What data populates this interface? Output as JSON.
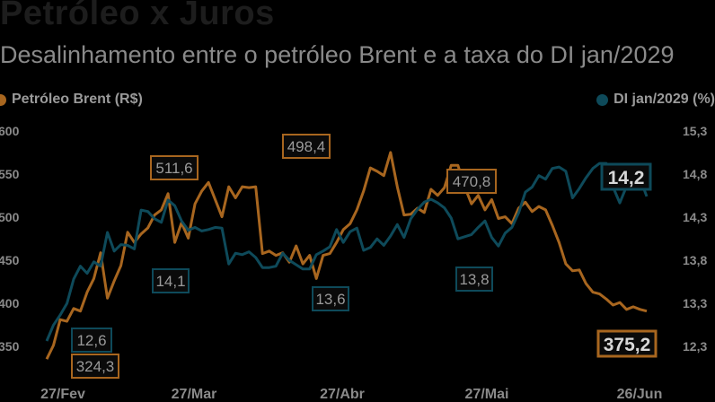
{
  "title": "Petróleo x Juros",
  "subtitle": "Desalinhamento entre o petróleo Brent e a taxa do DI jan/2029",
  "legend": {
    "left": {
      "label": "Petróleo Brent (R$)",
      "color": "#a8661f"
    },
    "right": {
      "label": "DI jan/2029 (%)",
      "color": "#0e4a5a"
    }
  },
  "chart_data": {
    "type": "line",
    "x_labels": [
      "27/Fev",
      "27/Mar",
      "27/Abr",
      "27/Mai",
      "26/Jun"
    ],
    "y_left": {
      "ticks": [
        "600",
        "550",
        "500",
        "450",
        "400",
        "350"
      ],
      "range": [
        330,
        600
      ]
    },
    "y_right": {
      "ticks": [
        "15,3",
        "14,8",
        "14,3",
        "13,8",
        "13,3",
        "12,3"
      ],
      "range": [
        12.08,
        15.3
      ]
    },
    "series": [
      {
        "name": "Petróleo Brent (R$)",
        "axis": "left",
        "color": "#a8661f",
        "values": [
          334,
          350,
          380,
          378,
          393,
          390,
          412,
          428,
          458,
          405,
          425,
          443,
          482,
          470,
          480,
          487,
          502,
          508,
          527,
          470,
          493,
          475,
          515,
          530,
          540,
          520,
          500,
          535,
          522,
          535,
          534,
          535,
          457,
          460,
          455,
          458,
          447,
          466,
          445,
          455,
          428,
          455,
          457,
          470,
          485,
          492,
          508,
          530,
          557,
          553,
          548,
          575,
          535,
          502,
          503,
          510,
          505,
          532,
          525,
          534,
          560,
          560,
          535,
          515,
          525,
          508,
          520,
          498,
          500,
          492,
          510,
          517,
          506,
          512,
          508,
          490,
          470,
          445,
          437,
          438,
          422,
          412,
          410,
          404,
          397,
          400,
          392,
          395,
          392,
          390
        ]
      },
      {
        "name": "DI jan/2029 (%)",
        "axis": "right",
        "color": "#0e4a5a",
        "values": [
          12.38,
          12.6,
          12.74,
          12.9,
          13.24,
          13.42,
          13.32,
          13.48,
          13.42,
          13.89,
          13.63,
          13.72,
          13.71,
          13.66,
          14.2,
          14.18,
          14.08,
          14.03,
          14.34,
          14.26,
          14.05,
          13.92,
          13.96,
          13.91,
          13.93,
          13.96,
          13.95,
          13.45,
          13.6,
          13.58,
          13.62,
          13.54,
          13.4,
          13.4,
          13.42,
          13.6,
          13.5,
          13.44,
          13.38,
          13.38,
          13.58,
          13.63,
          13.69,
          13.93,
          13.75,
          13.9,
          13.95,
          13.64,
          13.68,
          13.8,
          13.71,
          13.84,
          14.0,
          13.82,
          14.08,
          14.21,
          14.31,
          14.35,
          14.3,
          14.23,
          14.09,
          13.8,
          13.83,
          13.86,
          13.96,
          14.05,
          13.82,
          13.7,
          13.88,
          13.96,
          14.16,
          14.45,
          14.52,
          14.68,
          14.63,
          14.78,
          14.8,
          14.74,
          14.37,
          14.5,
          14.65,
          14.78,
          14.85,
          14.85,
          14.52,
          14.3,
          14.53,
          14.67,
          14.64,
          14.39
        ]
      }
    ],
    "annotations": [
      {
        "text": "511,6",
        "series": "Petróleo Brent (R$)",
        "big": false
      },
      {
        "text": "498,4",
        "series": "Petróleo Brent (R$)",
        "big": false
      },
      {
        "text": "470,8",
        "series": "Petróleo Brent (R$)",
        "big": false
      },
      {
        "text": "324,3",
        "series": "Petróleo Brent (R$)",
        "big": false
      },
      {
        "text": "375,2",
        "series": "Petróleo Brent (R$)",
        "big": true
      },
      {
        "text": "12,6",
        "series": "DI jan/2029 (%)",
        "big": false
      },
      {
        "text": "14,1",
        "series": "DI jan/2029 (%)",
        "big": false
      },
      {
        "text": "13,6",
        "series": "DI jan/2029 (%)",
        "big": false
      },
      {
        "text": "13,8",
        "series": "DI jan/2029 (%)",
        "big": false
      },
      {
        "text": "14,2",
        "series": "DI jan/2029 (%)",
        "big": true
      }
    ],
    "grid": false,
    "legend_placement": "top"
  }
}
